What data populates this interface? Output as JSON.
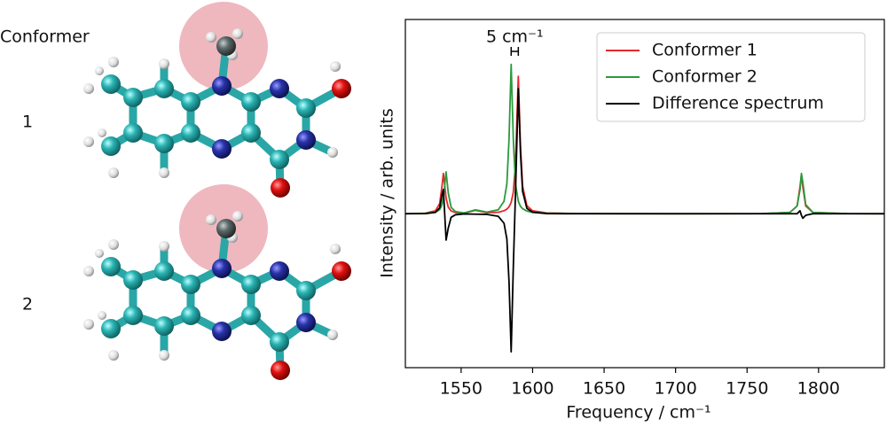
{
  "molecules": {
    "heading": "Conformer",
    "labels": [
      "1",
      "2"
    ]
  },
  "chart_data": {
    "type": "line",
    "xlabel": "Frequency / cm⁻¹",
    "ylabel": "Intensity / arb. units",
    "x": [
      1511,
      1525,
      1532,
      1535,
      1536.5,
      1537.6,
      1539.5,
      1541,
      1543,
      1546,
      1552,
      1560,
      1568,
      1576,
      1580,
      1582,
      1583.5,
      1585,
      1586.5,
      1588,
      1590,
      1591.5,
      1593,
      1596,
      1600,
      1610,
      1630,
      1700,
      1760,
      1780,
      1785,
      1787,
      1788,
      1789,
      1791,
      1796,
      1820,
      1846
    ],
    "series": [
      {
        "name": "Conformer 1",
        "color": "#e8262b",
        "values": [
          0,
          0.004,
          0.02,
          0.068,
          0.175,
          0.27,
          0.104,
          0.044,
          0.019,
          0.008,
          0.004,
          0.023,
          0.007,
          0.01,
          0.02,
          0.031,
          0.046,
          0.076,
          0.143,
          0.33,
          0.92,
          0.46,
          0.184,
          0.054,
          0.02,
          0.005,
          0.001,
          0,
          0.001,
          0.009,
          0.052,
          0.18,
          0.26,
          0.18,
          0.052,
          0.009,
          0.001,
          0
        ]
      },
      {
        "name": "Conformer 2",
        "color": "#2a9a3c",
        "values": [
          0,
          0.003,
          0.011,
          0.028,
          0.056,
          0.108,
          0.28,
          0.14,
          0.043,
          0.015,
          0.005,
          0.026,
          0.011,
          0.027,
          0.083,
          0.2,
          0.5,
          1.0,
          0.5,
          0.2,
          0.083,
          0.05,
          0.034,
          0.018,
          0.01,
          0.004,
          0.001,
          0,
          0.001,
          0.009,
          0.052,
          0.16,
          0.27,
          0.21,
          0.062,
          0.009,
          0.001,
          0
        ]
      },
      {
        "name": "Difference spectrum",
        "color": "#000000",
        "values": [
          0,
          0.001,
          0.009,
          0.04,
          0.119,
          0.162,
          -0.176,
          -0.096,
          -0.024,
          -0.007,
          -0.001,
          -0.003,
          -0.004,
          -0.017,
          -0.063,
          -0.169,
          -0.454,
          -0.924,
          -0.357,
          0.13,
          0.837,
          0.41,
          0.15,
          0.036,
          0.01,
          0.001,
          0,
          0,
          0,
          0,
          0,
          0.02,
          -0.01,
          -0.03,
          -0.01,
          0,
          0,
          0
        ]
      }
    ],
    "xlim": [
      1511,
      1846
    ],
    "xticks": [
      1550,
      1600,
      1650,
      1700,
      1750,
      1800
    ],
    "ylim": [
      -1.03,
      1.3
    ],
    "legend": "upper right",
    "annotations": [
      {
        "text": "5 cm⁻¹",
        "x1": 1585,
        "x2": 1590
      }
    ]
  }
}
